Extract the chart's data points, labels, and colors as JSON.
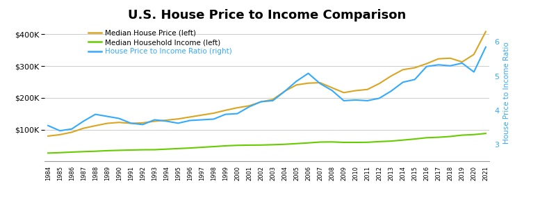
{
  "title": "U.S. House Price to Income Comparison",
  "years": [
    1984,
    1985,
    1986,
    1987,
    1988,
    1989,
    1990,
    1991,
    1992,
    1993,
    1994,
    1995,
    1996,
    1997,
    1998,
    1999,
    2000,
    2001,
    2002,
    2003,
    2004,
    2005,
    2006,
    2007,
    2008,
    2009,
    2010,
    2011,
    2012,
    2013,
    2014,
    2015,
    2016,
    2017,
    2018,
    2019,
    2020,
    2021
  ],
  "house_price": [
    79900,
    84300,
    92000,
    104500,
    112500,
    120000,
    122900,
    120000,
    121500,
    126500,
    130000,
    133900,
    140000,
    146000,
    152000,
    161000,
    169000,
    175200,
    187600,
    195000,
    221000,
    240900,
    246500,
    247900,
    232100,
    216700,
    222900,
    226700,
    245200,
    268900,
    288900,
    294900,
    307800,
    323100,
    325000,
    313200,
    336900,
    408800
  ],
  "household_income": [
    26430,
    27735,
    29460,
    30970,
    32190,
    33950,
    35050,
    35940,
    36810,
    37005,
    38780,
    40610,
    42300,
    44568,
    46737,
    49244,
    50732,
    51407,
    51680,
    52680,
    54061,
    56194,
    58407,
    61082,
    61521,
    60088,
    60010,
    60394,
    62527,
    64030,
    67295,
    70697,
    74664,
    76157,
    78646,
    82852,
    84609,
    88143
  ],
  "ratio": [
    3.55,
    3.4,
    3.45,
    3.68,
    3.88,
    3.82,
    3.76,
    3.62,
    3.58,
    3.72,
    3.68,
    3.62,
    3.7,
    3.72,
    3.74,
    3.88,
    3.9,
    4.1,
    4.25,
    4.28,
    4.55,
    4.85,
    5.08,
    4.78,
    4.58,
    4.28,
    4.3,
    4.28,
    4.35,
    4.56,
    4.82,
    4.9,
    5.28,
    5.33,
    5.3,
    5.38,
    5.12,
    5.85
  ],
  "house_price_color": "#DAA520",
  "income_color": "#66CC00",
  "ratio_color": "#33AAFF",
  "legend_ratio_color": "#33AAFF",
  "left_ylim": [
    0,
    430000
  ],
  "right_ylim": [
    2.5,
    6.5
  ],
  "left_yticks": [
    100000,
    200000,
    300000,
    400000
  ],
  "left_yticklabels": [
    "$100K",
    "$200K",
    "$300K",
    "$400K"
  ],
  "right_yticks": [
    3,
    4,
    5,
    6
  ],
  "right_yticklabels": [
    "3",
    "4",
    "5",
    "6"
  ],
  "right_ylabel": "House Price to Income Ratio",
  "legend_items": [
    {
      "label": "Median House Price (left)",
      "color": "#DAA520"
    },
    {
      "label": "Median Household Income (left)",
      "color": "#66CC00"
    },
    {
      "label": "House Price to Income Ratio (right)",
      "color": "#33AAFF"
    }
  ]
}
